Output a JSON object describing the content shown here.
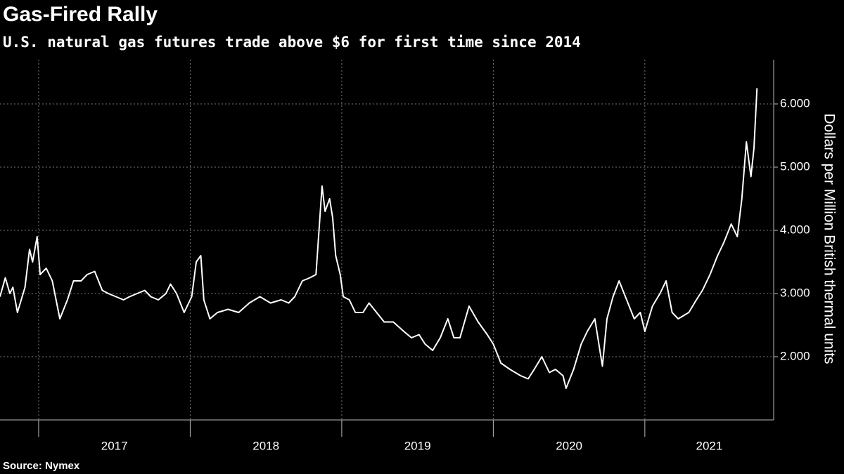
{
  "chart_data": {
    "type": "line",
    "title": "Gas-Fired Rally",
    "subtitle": "U.S. natural gas futures trade above $6 for first time since 2014",
    "y_label": "Dollars per Million British thermal units",
    "source": "Source: Nymex",
    "color": "#ffffff",
    "grid": true,
    "x": [
      2016.745,
      2016.78,
      2016.81,
      2016.83,
      2016.86,
      2016.91,
      2016.94,
      2016.96,
      2016.99,
      2017.01,
      2017.05,
      2017.09,
      2017.14,
      2017.19,
      2017.23,
      2017.28,
      2017.32,
      2017.37,
      2017.42,
      2017.46,
      2017.51,
      2017.56,
      2017.6,
      2017.65,
      2017.7,
      2017.74,
      2017.79,
      2017.84,
      2017.87,
      2017.91,
      2017.96,
      2018.01,
      2018.04,
      2018.07,
      2018.09,
      2018.13,
      2018.18,
      2018.25,
      2018.32,
      2018.39,
      2018.46,
      2018.53,
      2018.6,
      2018.65,
      2018.69,
      2018.74,
      2018.79,
      2018.83,
      2018.87,
      2018.89,
      2018.92,
      2018.94,
      2018.96,
      2018.99,
      2019.01,
      2019.05,
      2019.09,
      2019.14,
      2019.18,
      2019.23,
      2019.28,
      2019.34,
      2019.41,
      2019.46,
      2019.51,
      2019.55,
      2019.6,
      2019.65,
      2019.7,
      2019.74,
      2019.78,
      2019.84,
      2019.9,
      2019.96,
      2020.0,
      2020.05,
      2020.11,
      2020.18,
      2020.23,
      2020.27,
      2020.32,
      2020.37,
      2020.41,
      2020.46,
      2020.48,
      2020.53,
      2020.58,
      2020.62,
      2020.67,
      2020.72,
      2020.75,
      2020.79,
      2020.83,
      2020.88,
      2020.93,
      2020.97,
      2021.0,
      2021.05,
      2021.1,
      2021.14,
      2021.18,
      2021.22,
      2021.29,
      2021.34,
      2021.38,
      2021.43,
      2021.48,
      2021.52,
      2021.57,
      2021.61,
      2021.64,
      2021.67,
      2021.7,
      2021.72,
      2021.74
    ],
    "values": [
      2.95,
      3.25,
      3.0,
      3.1,
      2.7,
      3.1,
      3.7,
      3.5,
      3.9,
      3.3,
      3.4,
      3.2,
      2.6,
      2.9,
      3.2,
      3.2,
      3.3,
      3.35,
      3.05,
      3.0,
      2.95,
      2.9,
      2.95,
      3.0,
      3.05,
      2.95,
      2.9,
      3.0,
      3.15,
      3.0,
      2.7,
      2.95,
      3.5,
      3.6,
      2.9,
      2.6,
      2.7,
      2.75,
      2.7,
      2.85,
      2.95,
      2.85,
      2.9,
      2.85,
      2.95,
      3.2,
      3.25,
      3.3,
      4.7,
      4.3,
      4.5,
      4.2,
      3.6,
      3.3,
      2.95,
      2.9,
      2.7,
      2.7,
      2.85,
      2.7,
      2.55,
      2.55,
      2.4,
      2.3,
      2.35,
      2.2,
      2.1,
      2.3,
      2.6,
      2.3,
      2.3,
      2.8,
      2.55,
      2.35,
      2.2,
      1.9,
      1.8,
      1.7,
      1.65,
      1.8,
      2.0,
      1.75,
      1.8,
      1.7,
      1.5,
      1.8,
      2.2,
      2.4,
      2.6,
      1.85,
      2.6,
      2.95,
      3.2,
      2.9,
      2.6,
      2.7,
      2.4,
      2.8,
      3.0,
      3.2,
      2.7,
      2.6,
      2.7,
      2.9,
      3.05,
      3.3,
      3.6,
      3.8,
      4.1,
      3.9,
      4.5,
      5.4,
      4.85,
      5.3,
      6.25
    ],
    "xlim": [
      2016.745,
      2021.85
    ],
    "xticks": [
      2017,
      2018,
      2019,
      2020,
      2021
    ],
    "ylim": [
      1.0,
      6.7
    ],
    "yticks": [
      {
        "value": 2,
        "label": "2.000"
      },
      {
        "value": 3,
        "label": "3.000"
      },
      {
        "value": 4,
        "label": "4.000"
      },
      {
        "value": 5,
        "label": "5.000"
      },
      {
        "value": 6,
        "label": "6.000"
      }
    ]
  }
}
